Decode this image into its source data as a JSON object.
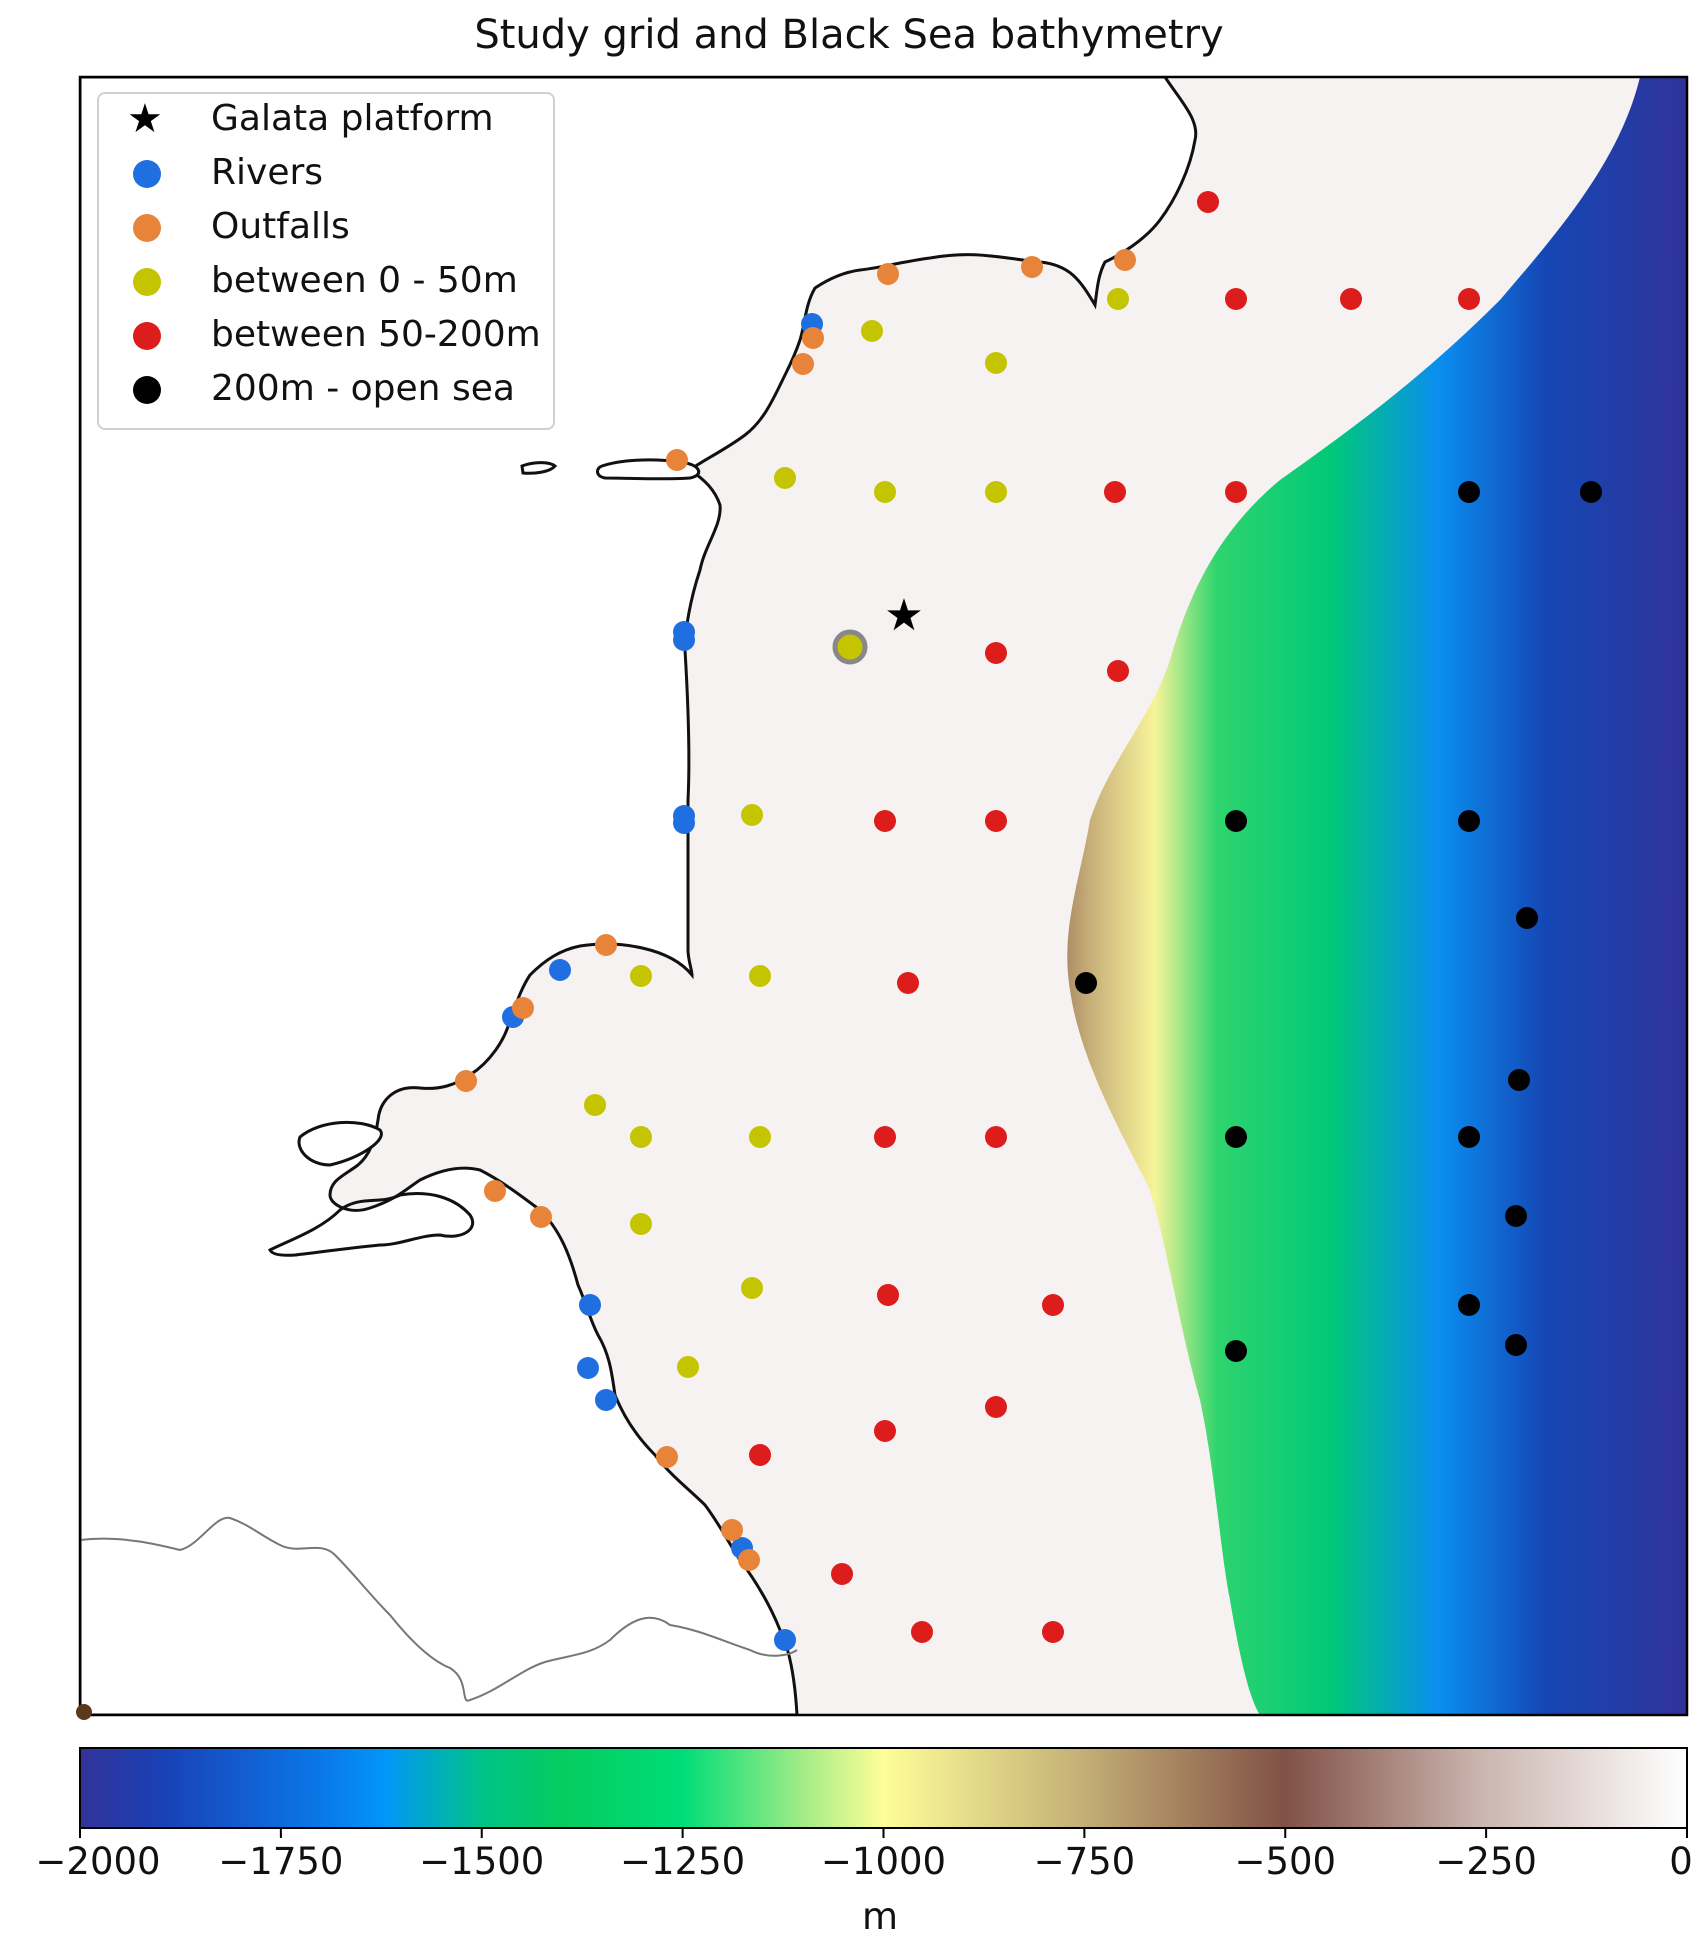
{
  "title": "Study grid and Black Sea bathymetry",
  "legend": {
    "items": [
      {
        "label": "Galata platform",
        "marker": "star",
        "color": "#000000"
      },
      {
        "label": "Rivers",
        "marker": "circle",
        "color": "#1f6fe0"
      },
      {
        "label": "Outfalls",
        "marker": "circle",
        "color": "#e8843a"
      },
      {
        "label": "between 0 - 50m",
        "marker": "circle",
        "color": "#c4c400"
      },
      {
        "label": "between 50-200m",
        "marker": "circle",
        "color": "#dd1c1c"
      },
      {
        "label": "200m - open sea",
        "marker": "circle",
        "color": "#000000"
      }
    ]
  },
  "colorbar": {
    "ticks": [
      "−2000",
      "−1750",
      "−1500",
      "−1250",
      "−1000",
      "−750",
      "−500",
      "−250",
      "0"
    ],
    "unit": "m",
    "range": [
      -2000,
      0
    ],
    "colormap": "terrain",
    "stops": [
      {
        "value": -2000,
        "color": "#333399"
      },
      {
        "value": -1750,
        "color": "#0294fa"
      },
      {
        "value": -1500,
        "color": "#00cc66"
      },
      {
        "value": -1250,
        "color": "#81e67f"
      },
      {
        "value": -1000,
        "color": "#fefe98"
      },
      {
        "value": -750,
        "color": "#bfa770"
      },
      {
        "value": -500,
        "color": "#805045"
      },
      {
        "value": -250,
        "color": "#bfa7a2"
      },
      {
        "value": 0,
        "color": "#ffffff"
      }
    ]
  },
  "colors": {
    "land": "#ffffff",
    "coastline": "#111111",
    "border": "#777777",
    "shelf": "#f4efee"
  }
}
